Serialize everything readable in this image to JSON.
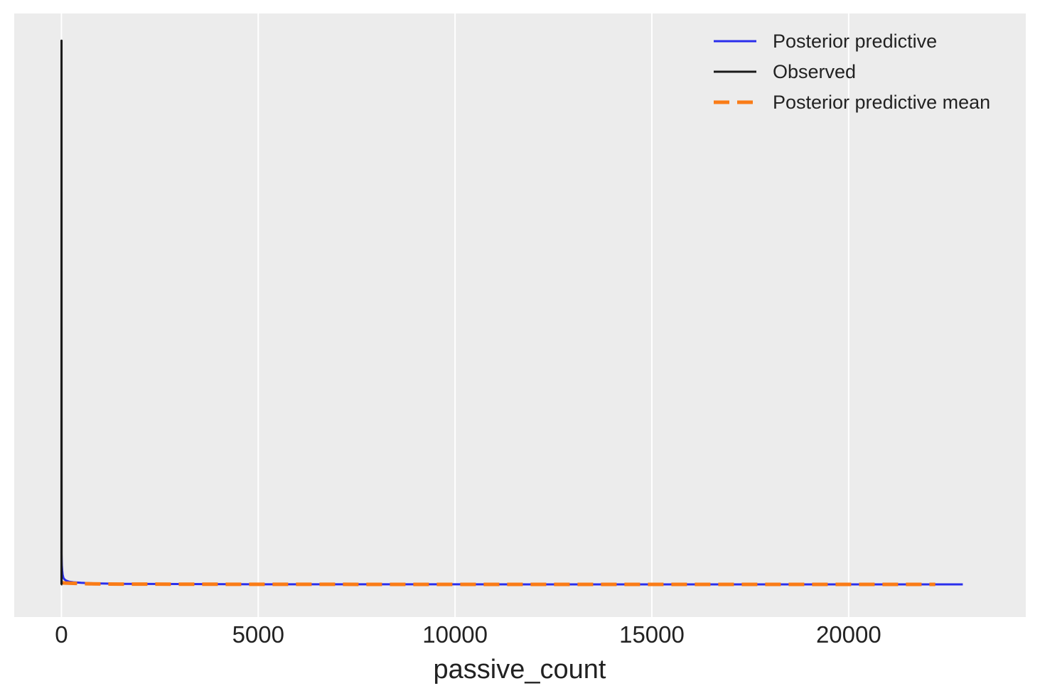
{
  "chart_data": {
    "type": "line",
    "title": "",
    "xlabel": "passive_count",
    "ylabel": "",
    "xlim": [
      -1200,
      24500
    ],
    "ylim": [
      -0.06,
      1.05
    ],
    "x_ticks": [
      0,
      5000,
      10000,
      15000,
      20000
    ],
    "x_tick_labels": [
      "0",
      "5000",
      "10000",
      "15000",
      "20000"
    ],
    "grid": "vertical",
    "legend_position": "top-right",
    "colors": {
      "background": "#ececec",
      "grid": "#ffffff",
      "posterior_predictive": "#2a2eec",
      "observed": "#1a1a1a",
      "posterior_predictive_mean": "#fa7c17"
    },
    "legend": [
      {
        "label": "Posterior predictive",
        "color": "#2a2eec",
        "style": "solid"
      },
      {
        "label": "Observed",
        "color": "#1a1a1a",
        "style": "solid"
      },
      {
        "label": "Posterior predictive mean",
        "color": "#fa7c17",
        "style": "dashed"
      }
    ],
    "series": [
      {
        "name": "Posterior predictive",
        "x": [
          0,
          5,
          10,
          20,
          30,
          50,
          80,
          120,
          200,
          300,
          500,
          800,
          1500,
          5000,
          12000,
          20000,
          22900
        ],
        "y": [
          0.06,
          0.045,
          0.035,
          0.025,
          0.018,
          0.012,
          0.009,
          0.007,
          0.005,
          0.004,
          0.003,
          0.002,
          0.001,
          0.0003,
          0.0001,
          5e-05,
          0.0
        ]
      },
      {
        "name": "Observed",
        "x": [
          0,
          2,
          4,
          8,
          20
        ],
        "y": [
          0.0,
          1.0,
          0.002,
          0.0,
          0.0
        ]
      },
      {
        "name": "Posterior predictive mean",
        "x": [
          0,
          100,
          300,
          800,
          1500,
          5000,
          10000,
          15000,
          22200
        ],
        "y": [
          0.003,
          0.0025,
          0.002,
          0.001,
          0.0006,
          0.0002,
          0.0001,
          5e-05,
          0.0
        ]
      }
    ]
  }
}
